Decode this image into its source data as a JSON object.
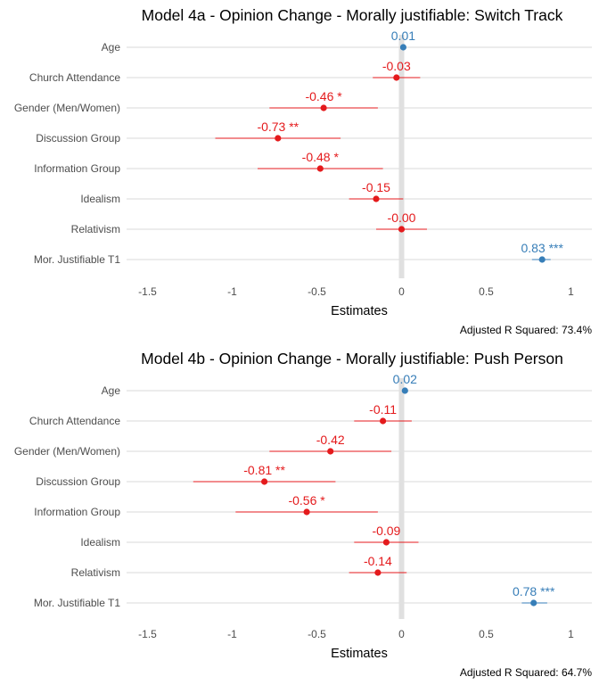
{
  "chart_data": [
    {
      "type": "forest",
      "title": "Model 4a - Opinion Change - Morally justifiable: Switch Track",
      "xlabel": "Estimates",
      "caption": "Adjusted R Squared: 73.4%",
      "xlim": [
        -1.6,
        1.1
      ],
      "xticks": [
        -1.5,
        -1,
        -0.5,
        0,
        0.5,
        1
      ],
      "xtick_labels": [
        "-1.5",
        "-1",
        "-0.5",
        "0",
        "0.5",
        "1"
      ],
      "colors": {
        "positive": "#377eb8",
        "negative": "#e41a1c",
        "zero_line": "#e0e0e0",
        "grid": "#d9d9d9"
      },
      "terms": [
        {
          "term": "Age",
          "estimate": 0.01,
          "ci_low": 0.0,
          "ci_high": 0.02,
          "label": "0.01"
        },
        {
          "term": "Church Attendance",
          "estimate": -0.03,
          "ci_low": -0.17,
          "ci_high": 0.11,
          "label": "-0.03"
        },
        {
          "term": "Gender (Men/Women)",
          "estimate": -0.46,
          "ci_low": -0.78,
          "ci_high": -0.14,
          "label": "-0.46 *"
        },
        {
          "term": "Discussion Group",
          "estimate": -0.73,
          "ci_low": -1.1,
          "ci_high": -0.36,
          "label": "-0.73 **"
        },
        {
          "term": "Information Group",
          "estimate": -0.48,
          "ci_low": -0.85,
          "ci_high": -0.11,
          "label": "-0.48 *"
        },
        {
          "term": "Idealism",
          "estimate": -0.15,
          "ci_low": -0.31,
          "ci_high": 0.01,
          "label": "-0.15"
        },
        {
          "term": "Relativism",
          "estimate": -0.0,
          "ci_low": -0.15,
          "ci_high": 0.15,
          "label": "-0.00"
        },
        {
          "term": "Mor. Justifiable T1",
          "estimate": 0.83,
          "ci_low": 0.77,
          "ci_high": 0.88,
          "label": "0.83 ***"
        }
      ]
    },
    {
      "type": "forest",
      "title": "Model 4b - Opinion Change - Morally justifiable: Push Person",
      "xlabel": "Estimates",
      "caption": "Adjusted R Squared: 64.7%",
      "xlim": [
        -1.6,
        1.1
      ],
      "xticks": [
        -1.5,
        -1,
        -0.5,
        0,
        0.5,
        1
      ],
      "xtick_labels": [
        "-1.5",
        "-1",
        "-0.5",
        "0",
        "0.5",
        "1"
      ],
      "colors": {
        "positive": "#377eb8",
        "negative": "#e41a1c",
        "zero_line": "#e0e0e0",
        "grid": "#d9d9d9"
      },
      "terms": [
        {
          "term": "Age",
          "estimate": 0.02,
          "ci_low": 0.01,
          "ci_high": 0.03,
          "label": "0.02"
        },
        {
          "term": "Church Attendance",
          "estimate": -0.11,
          "ci_low": -0.28,
          "ci_high": 0.06,
          "label": "-0.11"
        },
        {
          "term": "Gender (Men/Women)",
          "estimate": -0.42,
          "ci_low": -0.78,
          "ci_high": -0.06,
          "label": "-0.42"
        },
        {
          "term": "Discussion Group",
          "estimate": -0.81,
          "ci_low": -1.23,
          "ci_high": -0.39,
          "label": "-0.81 **"
        },
        {
          "term": "Information Group",
          "estimate": -0.56,
          "ci_low": -0.98,
          "ci_high": -0.14,
          "label": "-0.56 *"
        },
        {
          "term": "Idealism",
          "estimate": -0.09,
          "ci_low": -0.28,
          "ci_high": 0.1,
          "label": "-0.09"
        },
        {
          "term": "Relativism",
          "estimate": -0.14,
          "ci_low": -0.31,
          "ci_high": 0.03,
          "label": "-0.14"
        },
        {
          "term": "Mor. Justifiable T1",
          "estimate": 0.78,
          "ci_low": 0.71,
          "ci_high": 0.86,
          "label": "0.78 ***"
        }
      ]
    }
  ]
}
